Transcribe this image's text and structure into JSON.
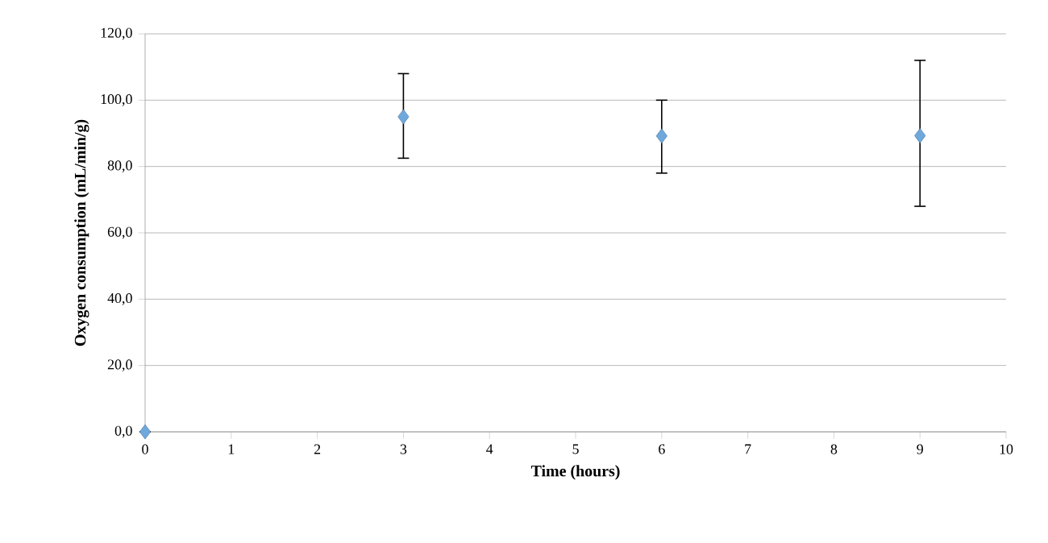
{
  "chart_data": {
    "type": "scatter",
    "xlabel": "Time (hours)",
    "ylabel": "Oxygen consumption (mL/min/g)",
    "x": [
      0,
      3,
      6,
      9
    ],
    "values": [
      0,
      95,
      89.2,
      89.3
    ],
    "errors": [
      null,
      [
        82.5,
        108
      ],
      [
        78,
        100
      ],
      [
        68,
        112
      ]
    ],
    "color": "#6fa8dc",
    "marker": "diamond",
    "grid": "y",
    "xlim": [
      0,
      10
    ],
    "xticks": [
      0,
      1,
      2,
      3,
      4,
      5,
      6,
      7,
      8,
      9,
      10
    ],
    "ylim": [
      0,
      120
    ],
    "yticks": [
      {
        "value": 0,
        "label": "0,0"
      },
      {
        "value": 20,
        "label": "20,0"
      },
      {
        "value": 40,
        "label": "40,0"
      },
      {
        "value": 60,
        "label": "60,0"
      },
      {
        "value": 80,
        "label": "80,0"
      },
      {
        "value": 100,
        "label": "100,0"
      },
      {
        "value": 120,
        "label": "120,0"
      }
    ]
  }
}
